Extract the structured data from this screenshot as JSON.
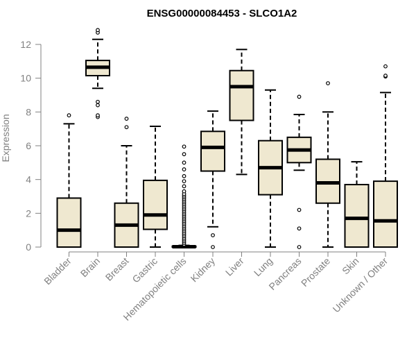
{
  "chart_data": {
    "type": "boxplot",
    "title": "ENSG00000084453 - SLCO1A2",
    "xlabel": "",
    "ylabel": "Expression",
    "ylim": [
      0,
      12
    ],
    "yticks": [
      0,
      2,
      4,
      6,
      8,
      10,
      12
    ],
    "colors": {
      "box_fill": "#efe8d0",
      "stroke": "#000000",
      "axis": "#808080"
    },
    "categories": [
      "Bladder",
      "Brain",
      "Breast",
      "Gastric",
      "Hematopoietic cells",
      "Kidney",
      "Liver",
      "Lung",
      "Pancreas",
      "Prostate",
      "Skin",
      "Unknown / Other"
    ],
    "boxes": [
      {
        "name": "Bladder",
        "whisker_low": 0,
        "q1": 0,
        "median": 1.0,
        "q3": 2.9,
        "whisker_high": 7.3,
        "outliers": [
          7.8
        ]
      },
      {
        "name": "Brain",
        "whisker_low": 9.4,
        "q1": 10.15,
        "median": 10.65,
        "q3": 11.05,
        "whisker_high": 12.3,
        "outliers": [
          7.7,
          7.8,
          8.4,
          8.6,
          12.7,
          12.85
        ]
      },
      {
        "name": "Breast",
        "whisker_low": 0,
        "q1": 0,
        "median": 1.3,
        "q3": 2.6,
        "whisker_high": 6.0,
        "outliers": [
          7.1,
          7.6
        ]
      },
      {
        "name": "Gastric",
        "whisker_low": 0,
        "q1": 1.05,
        "median": 1.9,
        "q3": 3.95,
        "whisker_high": 7.15,
        "outliers": []
      },
      {
        "name": "Hematopoietic cells",
        "whisker_low": 0,
        "q1": 0,
        "median": 0.02,
        "q3": 0.05,
        "whisker_high": 0.1,
        "outliers": [
          0.15,
          0.25,
          0.35,
          0.45,
          0.55,
          0.65,
          0.75,
          0.85,
          0.95,
          1.05,
          1.15,
          1.25,
          1.35,
          1.45,
          1.55,
          1.65,
          1.75,
          1.85,
          1.95,
          2.05,
          2.15,
          2.25,
          2.35,
          2.45,
          2.55,
          2.65,
          2.75,
          2.85,
          2.95,
          3.05,
          3.15,
          3.3,
          3.6,
          3.9,
          4.2,
          4.6,
          5.0,
          5.5,
          5.95
        ]
      },
      {
        "name": "Kidney",
        "whisker_low": 1.2,
        "q1": 4.5,
        "median": 5.9,
        "q3": 6.85,
        "whisker_high": 8.05,
        "outliers": [
          0,
          0.7
        ]
      },
      {
        "name": "Liver",
        "whisker_low": 4.3,
        "q1": 7.5,
        "median": 9.5,
        "q3": 10.45,
        "whisker_high": 11.7,
        "outliers": []
      },
      {
        "name": "Lung",
        "whisker_low": 0,
        "q1": 3.1,
        "median": 4.7,
        "q3": 6.3,
        "whisker_high": 9.3,
        "outliers": []
      },
      {
        "name": "Pancreas",
        "whisker_low": 4.55,
        "q1": 5.0,
        "median": 5.75,
        "q3": 6.5,
        "whisker_high": 7.85,
        "outliers": [
          0,
          1.1,
          2.2,
          8.9
        ]
      },
      {
        "name": "Prostate",
        "whisker_low": 0,
        "q1": 2.6,
        "median": 3.8,
        "q3": 5.2,
        "whisker_high": 8.0,
        "outliers": [
          9.7
        ]
      },
      {
        "name": "Skin",
        "whisker_low": 0,
        "q1": 0,
        "median": 1.7,
        "q3": 3.7,
        "whisker_high": 5.05,
        "outliers": []
      },
      {
        "name": "Unknown / Other",
        "whisker_low": 0,
        "q1": 0,
        "median": 1.55,
        "q3": 3.9,
        "whisker_high": 9.15,
        "outliers": [
          10.1,
          10.15,
          10.7
        ]
      }
    ]
  }
}
